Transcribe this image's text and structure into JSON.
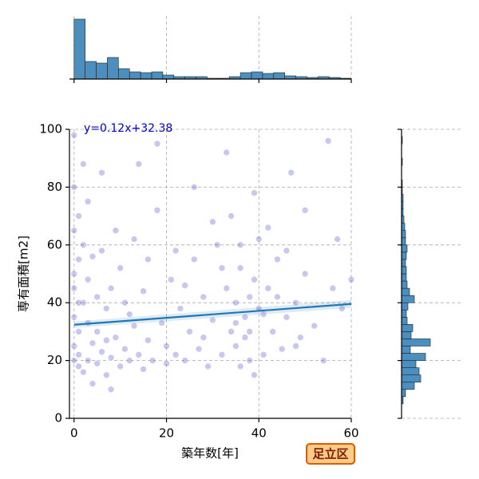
{
  "chart_data": [
    {
      "type": "scatter",
      "annotation": "y=0.12x+32.38",
      "xlabel": "築年数[年]",
      "ylabel": "専有面積[m2]",
      "badge": "足立区",
      "xlim": [
        -1,
        60
      ],
      "ylim": [
        0,
        100
      ],
      "xticks": [
        0,
        20,
        40,
        60
      ],
      "yticks": [
        0,
        20,
        40,
        60,
        80,
        100
      ],
      "grid": true,
      "color": "#2222bb",
      "fit_color": "#1f77b4",
      "fit": {
        "x": [
          0,
          60
        ],
        "y": [
          32.38,
          39.58
        ]
      },
      "x": [
        0,
        0,
        0,
        0,
        0,
        0,
        0,
        0,
        1,
        1,
        1,
        1,
        1,
        2,
        2,
        2,
        3,
        3,
        3,
        4,
        4,
        5,
        5,
        6,
        6,
        7,
        7,
        8,
        8,
        8,
        9,
        10,
        10,
        11,
        12,
        12,
        13,
        14,
        15,
        15,
        16,
        17,
        18,
        19,
        20,
        21,
        22,
        23,
        24,
        25,
        26,
        27,
        28,
        29,
        30,
        31,
        32,
        33,
        34,
        34,
        35,
        35,
        36,
        36,
        37,
        37,
        38,
        38,
        39,
        39,
        40,
        40,
        41,
        42,
        43,
        44,
        45,
        46,
        47,
        48,
        49,
        50,
        52,
        54,
        56,
        58,
        60,
        3,
        6,
        9,
        14,
        18,
        22,
        26,
        30,
        33,
        36,
        39,
        42,
        46,
        50,
        55,
        2,
        5,
        11,
        16,
        24,
        32,
        38,
        44,
        1,
        4,
        7,
        13,
        20,
        28,
        35,
        41,
        48,
        57
      ],
      "y": [
        20,
        35,
        50,
        65,
        80,
        25,
        45,
        98,
        18,
        30,
        55,
        70,
        22,
        16,
        40,
        60,
        20,
        33,
        48,
        12,
        26,
        19,
        42,
        23,
        58,
        15,
        38,
        10,
        21,
        45,
        28,
        18,
        52,
        24,
        20,
        36,
        62,
        22,
        17,
        44,
        27,
        20,
        95,
        33,
        19,
        48,
        22,
        38,
        20,
        30,
        55,
        24,
        42,
        18,
        34,
        60,
        22,
        45,
        30,
        70,
        25,
        40,
        18,
        52,
        35,
        28,
        42,
        20,
        48,
        15,
        38,
        62,
        22,
        45,
        30,
        55,
        24,
        35,
        85,
        40,
        28,
        50,
        32,
        20,
        45,
        38,
        48,
        75,
        85,
        65,
        88,
        72,
        58,
        80,
        68,
        92,
        60,
        78,
        66,
        58,
        72,
        96,
        88,
        30,
        40,
        55,
        46,
        52,
        30,
        42,
        40,
        56,
        27,
        32,
        25,
        28,
        33,
        36,
        25,
        62
      ]
    },
    {
      "type": "histogram",
      "orientation": "vertical",
      "color": "#4a8fc0",
      "ylim": [
        0,
        79
      ],
      "bins": [
        0,
        2.4,
        4.8,
        7.2,
        9.6,
        12,
        14.4,
        16.8,
        19.2,
        21.6,
        24,
        26.4,
        28.8,
        31.2,
        33.6,
        36,
        38.4,
        40.8,
        43.2,
        45.6,
        48,
        50.4,
        52.8,
        55.2,
        57.6,
        60
      ],
      "values": [
        75,
        22,
        20,
        27,
        13,
        9,
        8,
        9,
        5,
        3,
        3,
        3,
        1,
        1,
        3,
        8,
        9,
        7,
        8,
        4,
        3,
        2,
        3,
        2,
        1
      ]
    },
    {
      "type": "histogram",
      "orientation": "horizontal",
      "color": "#4a8fc0",
      "xlim": [
        0,
        77
      ],
      "bins": [
        0,
        2.5,
        5,
        7.5,
        10,
        12.5,
        15,
        17.5,
        20,
        22.5,
        25,
        27.5,
        30,
        32.5,
        35,
        37.5,
        40,
        42.5,
        45,
        47.5,
        50,
        52.5,
        55,
        57.5,
        60,
        62.5,
        65,
        67.5,
        70,
        72.5,
        75,
        77.5,
        80,
        82.5,
        85,
        87.5,
        90,
        92.5,
        95,
        97.5,
        100
      ],
      "values": [
        0,
        0,
        2,
        5,
        16,
        24,
        22,
        18,
        30,
        11,
        36,
        12,
        14,
        7,
        6,
        8,
        16,
        10,
        7,
        6,
        6,
        5,
        6,
        7,
        5,
        5,
        4,
        3,
        2,
        2,
        2,
        1,
        1,
        0,
        0,
        1,
        0,
        0,
        1,
        0
      ]
    }
  ]
}
